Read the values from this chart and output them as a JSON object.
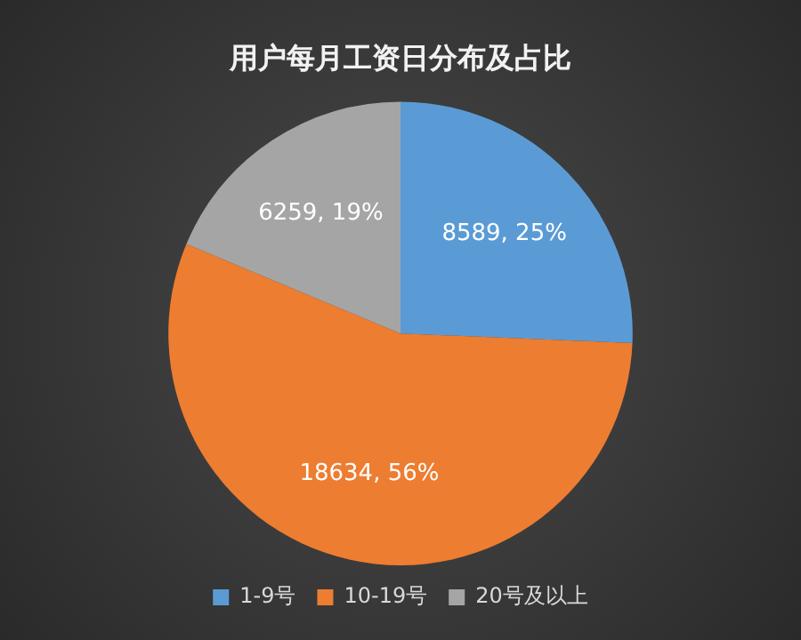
{
  "chart_data": {
    "type": "pie",
    "title": "用户每月工资日分布及占比",
    "categories": [
      "1-9号",
      "10-19号",
      "20号及以上"
    ],
    "values": [
      8589,
      18634,
      6259
    ],
    "colors": [
      "#5b9bd5",
      "#ed7d31",
      "#a5a5a5"
    ],
    "value_labels": [
      "8589, 25%",
      "18634, 56%",
      "6259, 19%"
    ],
    "legend": "bottom"
  }
}
